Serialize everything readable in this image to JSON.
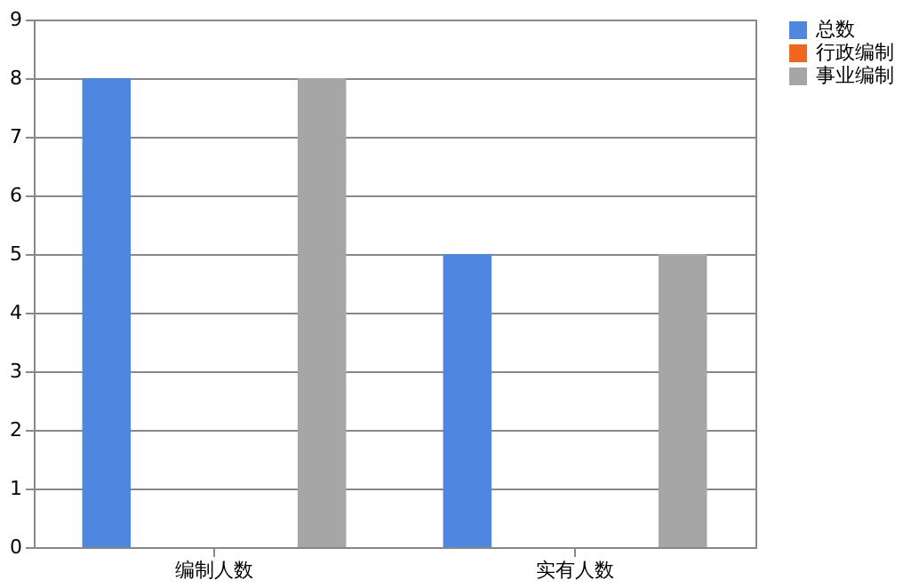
{
  "chart_data": {
    "type": "bar",
    "categories": [
      "编制人数",
      "实有人数"
    ],
    "series": [
      {
        "name": "总数",
        "color": "#4f86e0",
        "values": [
          8,
          5
        ]
      },
      {
        "name": "行政编制",
        "color": "#f0661c",
        "values": [
          0,
          0
        ]
      },
      {
        "name": "事业编制",
        "color": "#a6a6a6",
        "values": [
          8,
          5
        ]
      }
    ],
    "ylim": [
      0,
      9
    ],
    "yticks": [
      0,
      1,
      2,
      3,
      4,
      5,
      6,
      7,
      8,
      9
    ],
    "grid": "y",
    "legend": "right"
  }
}
